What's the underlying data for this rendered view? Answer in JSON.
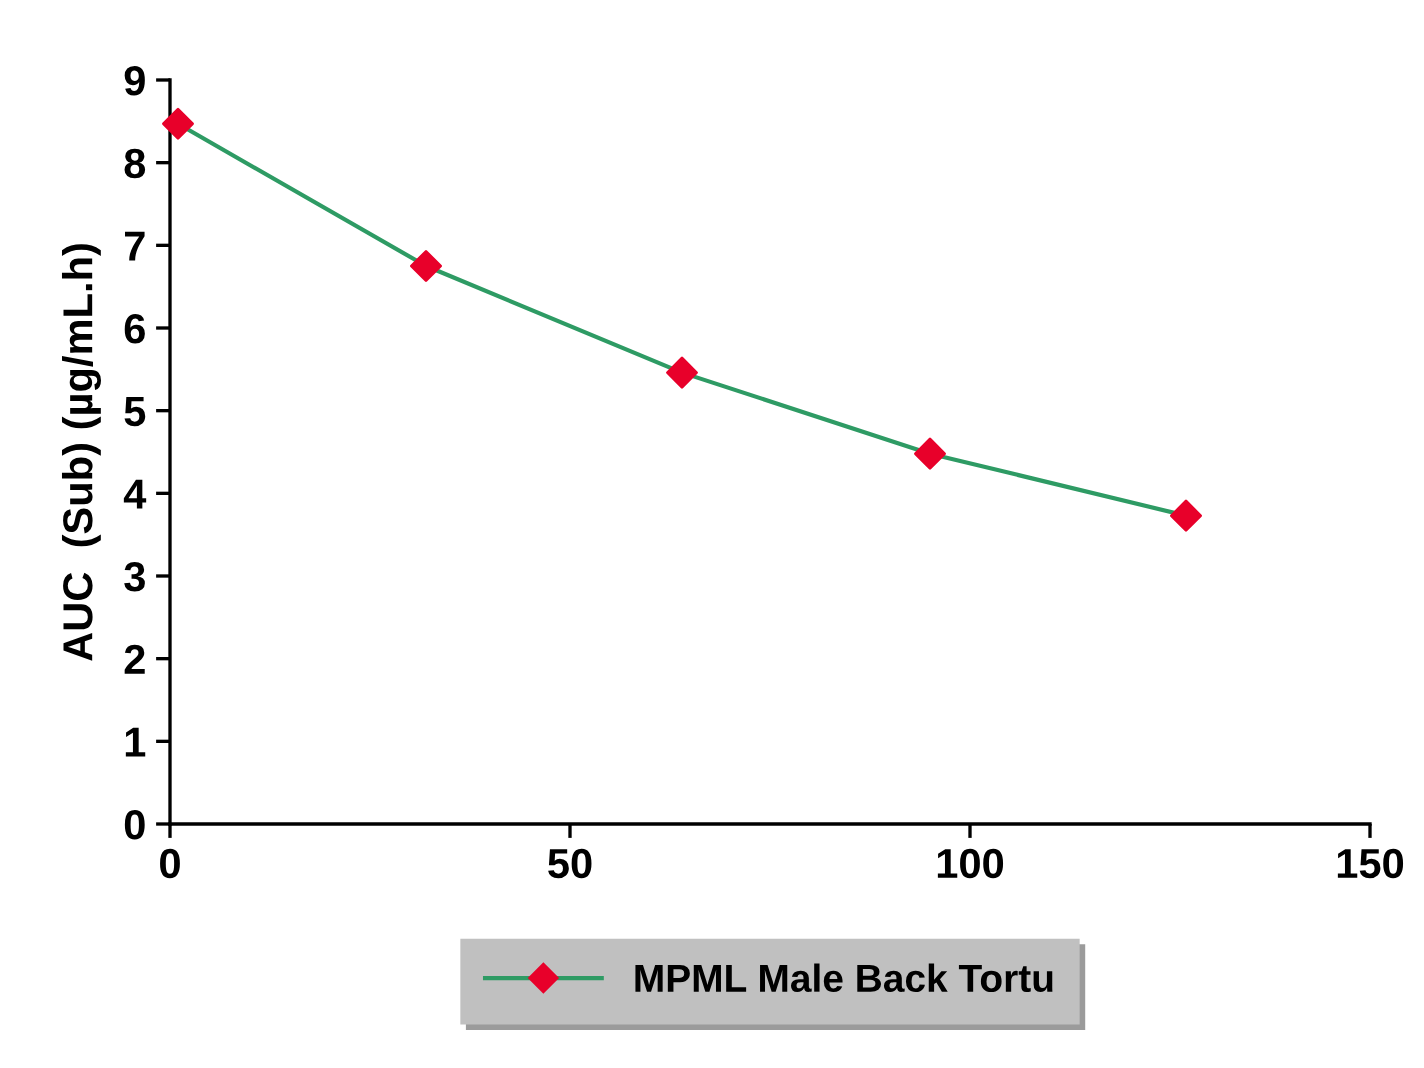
{
  "chart_data": {
    "type": "line",
    "ylabel": "AUC  (Sub) (µg/mL.h)",
    "x": [
      1,
      32,
      64,
      95,
      127
    ],
    "series": [
      {
        "name": "MPML Male Back Tortu",
        "color": "#2e9b64",
        "colors": [
          "#e8002a",
          "#e8002a",
          "#e8002a",
          "#e8002a",
          "#e8002a"
        ],
        "values": [
          8.47,
          6.75,
          5.46,
          4.48,
          3.73
        ]
      }
    ],
    "marker": "diamond",
    "xlim": [
      0,
      150
    ],
    "xticks": [
      0,
      50,
      100,
      150
    ],
    "ylim": [
      0,
      9
    ],
    "yticks": [
      0,
      1,
      2,
      3,
      4,
      5,
      6,
      7,
      8,
      9
    ],
    "grid": false,
    "legend": "bottom"
  }
}
